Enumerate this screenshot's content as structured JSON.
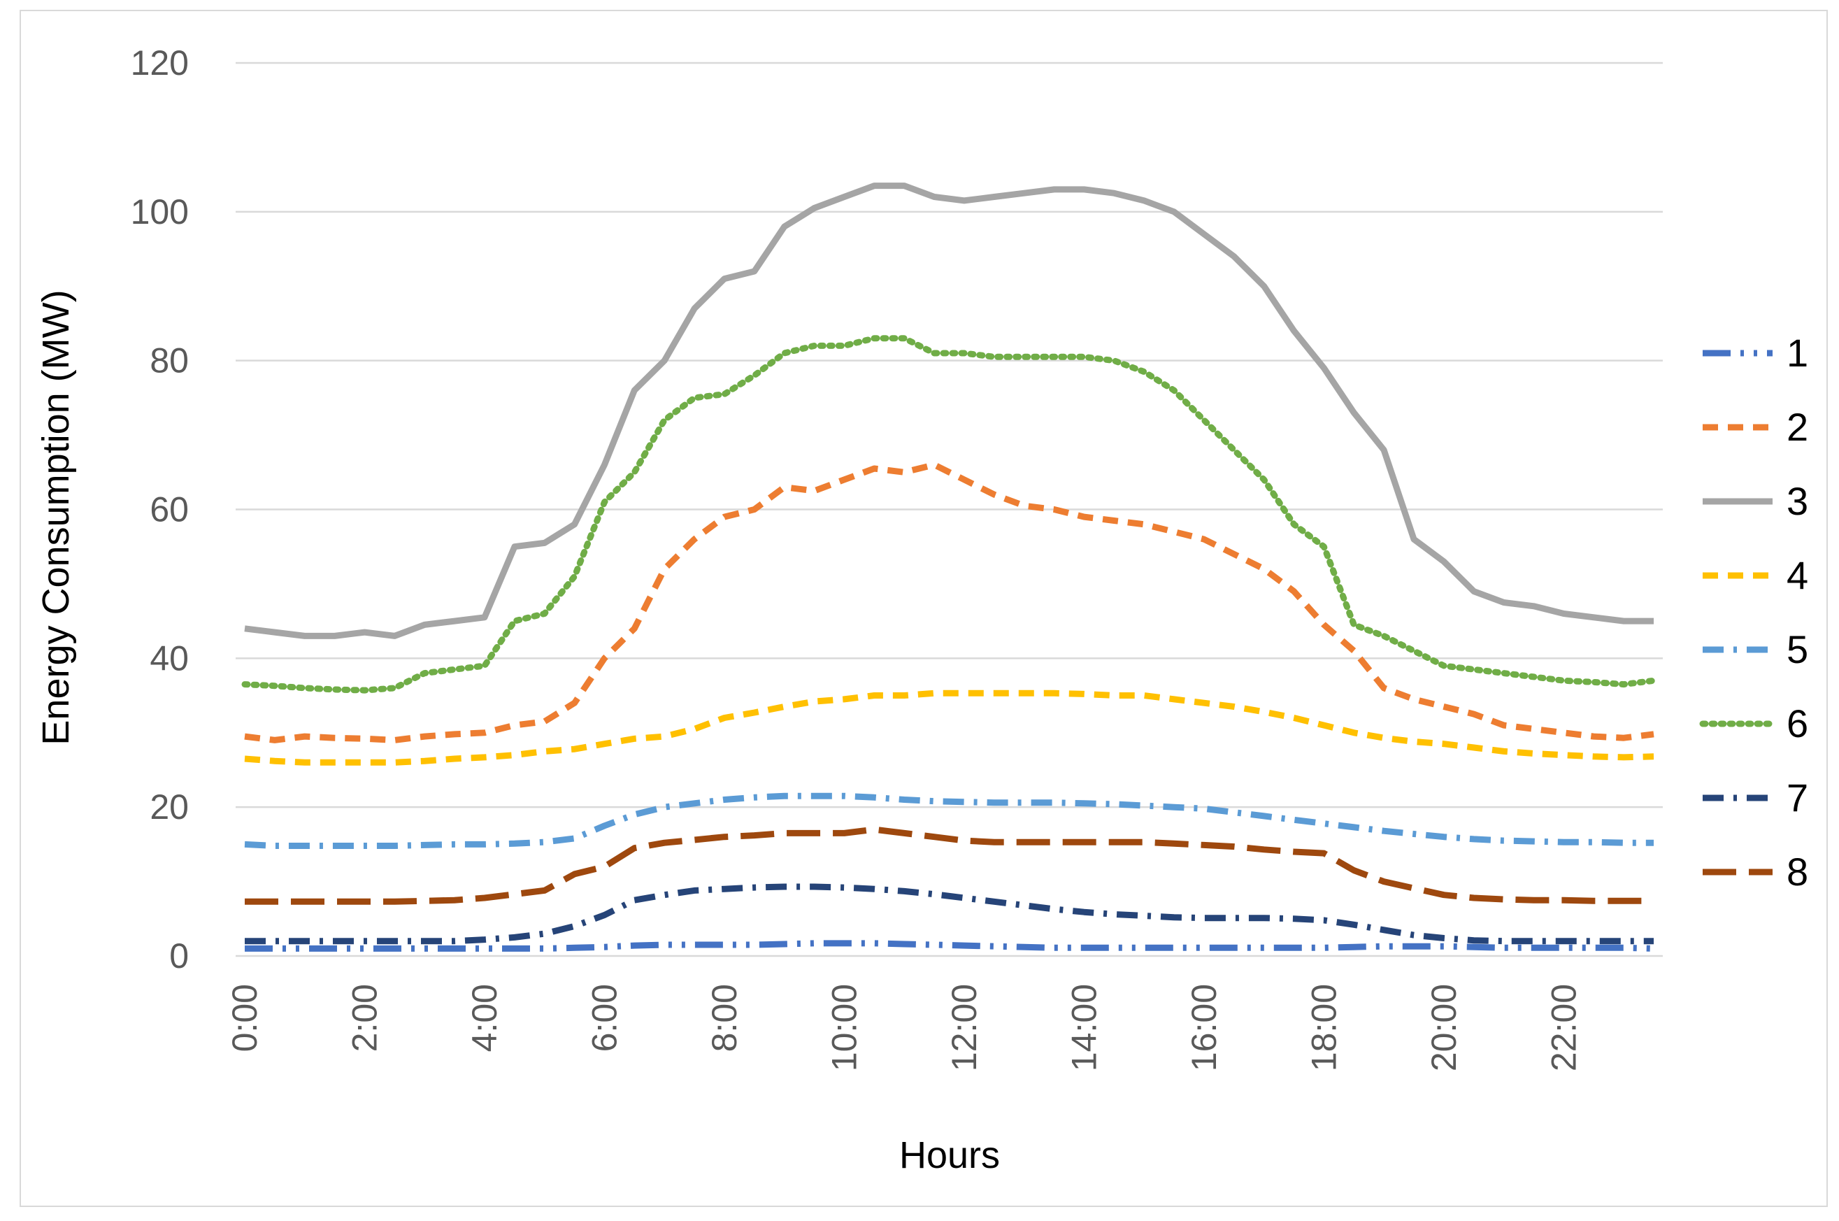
{
  "chart_data": {
    "type": "line",
    "title": "",
    "xlabel": "Hours",
    "ylabel": "Energy Consumption (MW)",
    "ylim": [
      0,
      120
    ],
    "yticks": [
      0,
      20,
      40,
      60,
      80,
      100,
      120
    ],
    "xlim": [
      0,
      23.5
    ],
    "xtick_labels": [
      "0:00",
      "2:00",
      "4:00",
      "6:00",
      "8:00",
      "10:00",
      "12:00",
      "14:00",
      "16:00",
      "18:00",
      "20:00",
      "22:00"
    ],
    "grid": "horizontal",
    "legend": "right",
    "x_hours": [
      0,
      0.5,
      1,
      1.5,
      2,
      2.5,
      3,
      3.5,
      4,
      4.5,
      5,
      5.5,
      6,
      6.5,
      7,
      7.5,
      8,
      8.5,
      9,
      9.5,
      10,
      10.5,
      11,
      11.5,
      12,
      12.5,
      13,
      13.5,
      14,
      14.5,
      15,
      15.5,
      16,
      16.5,
      17,
      17.5,
      18,
      18.5,
      19,
      19.5,
      20,
      20.5,
      21,
      21.5,
      22,
      22.5,
      23,
      23.5
    ],
    "series": [
      {
        "name": "1",
        "color": "#4472C4",
        "dash": "dashdotdot",
        "values": [
          1,
          1,
          1,
          1,
          1,
          1,
          1,
          1,
          1,
          1,
          1,
          1.1,
          1.2,
          1.4,
          1.5,
          1.5,
          1.5,
          1.5,
          1.6,
          1.7,
          1.7,
          1.7,
          1.6,
          1.5,
          1.4,
          1.3,
          1.2,
          1.1,
          1.1,
          1.1,
          1.1,
          1.1,
          1.1,
          1.1,
          1.1,
          1.1,
          1.1,
          1.2,
          1.3,
          1.3,
          1.3,
          1.2,
          1.1,
          1.1,
          1.1,
          1.1,
          1.1,
          1
        ]
      },
      {
        "name": "2",
        "color": "#ED7D31",
        "dash": "dash",
        "values": [
          29.5,
          29,
          29.5,
          29.3,
          29.2,
          29,
          29.5,
          29.8,
          30,
          31,
          31.5,
          34,
          40,
          44,
          52,
          56,
          59,
          60,
          63,
          62.5,
          64,
          65.5,
          65,
          66,
          64,
          62,
          60.5,
          60,
          59,
          58.5,
          58,
          57,
          56,
          54,
          52,
          49,
          44.5,
          41,
          36,
          34.5,
          33.5,
          32.5,
          31,
          30.5,
          30,
          29.5,
          29.3,
          29.8
        ]
      },
      {
        "name": "3",
        "color": "#A5A5A5",
        "dash": "solid",
        "values": [
          44,
          43.5,
          43,
          43,
          43.5,
          43,
          44.5,
          45,
          45.5,
          55,
          55.5,
          58,
          66,
          76,
          80,
          87,
          91,
          92,
          98,
          100.5,
          102,
          103.5,
          103.5,
          102,
          101.5,
          102,
          102.5,
          103,
          103,
          102.5,
          101.5,
          100,
          97,
          94,
          90,
          84,
          79,
          73,
          68,
          56,
          53,
          49,
          47.5,
          47,
          46,
          45.5,
          45,
          45
        ]
      },
      {
        "name": "4",
        "color": "#FFC000",
        "dash": "dash",
        "values": [
          26.5,
          26.2,
          26,
          26,
          26,
          26,
          26.2,
          26.5,
          26.7,
          27,
          27.5,
          27.8,
          28.5,
          29.2,
          29.5,
          30.5,
          32,
          32.7,
          33.5,
          34.2,
          34.5,
          35,
          35,
          35.3,
          35.3,
          35.3,
          35.3,
          35.3,
          35.2,
          35,
          35,
          34.5,
          34,
          33.5,
          32.8,
          32,
          31,
          30,
          29.3,
          28.8,
          28.5,
          28,
          27.5,
          27.2,
          27,
          26.8,
          26.7,
          26.8
        ]
      },
      {
        "name": "5",
        "color": "#5B9BD5",
        "dash": "dashdot",
        "values": [
          15,
          14.8,
          14.8,
          14.8,
          14.8,
          14.8,
          14.9,
          15,
          15,
          15.1,
          15.3,
          15.8,
          17.5,
          19,
          20,
          20.5,
          21,
          21.3,
          21.5,
          21.5,
          21.5,
          21.3,
          21,
          20.8,
          20.7,
          20.6,
          20.6,
          20.6,
          20.5,
          20.4,
          20.2,
          20,
          19.8,
          19.3,
          18.8,
          18.3,
          17.8,
          17.3,
          16.8,
          16.4,
          16,
          15.7,
          15.5,
          15.4,
          15.3,
          15.3,
          15.2,
          15.2
        ]
      },
      {
        "name": "6",
        "color": "#70AD47",
        "dash": "dot",
        "values": [
          36.5,
          36.3,
          36,
          35.8,
          35.7,
          36,
          38,
          38.5,
          39,
          45,
          46,
          51,
          61,
          65,
          72,
          75,
          75.5,
          78,
          81,
          82,
          82,
          83,
          83,
          81,
          81,
          80.5,
          80.5,
          80.5,
          80.5,
          80,
          78.5,
          76,
          72,
          68,
          64,
          58,
          55,
          44.5,
          43,
          41,
          39,
          38.5,
          38,
          37.5,
          37,
          36.8,
          36.5,
          37
        ]
      },
      {
        "name": "7",
        "color": "#264478",
        "dash": "dashdot",
        "values": [
          2,
          2,
          2,
          2,
          2,
          2,
          2,
          2,
          2.2,
          2.5,
          3,
          4,
          5.5,
          7.5,
          8.2,
          8.8,
          9,
          9.2,
          9.3,
          9.3,
          9.2,
          9,
          8.7,
          8.3,
          7.8,
          7.3,
          6.8,
          6.3,
          5.9,
          5.6,
          5.4,
          5.2,
          5.1,
          5.1,
          5.1,
          5,
          4.8,
          4.2,
          3.5,
          2.8,
          2.4,
          2.1,
          2,
          2,
          2,
          2,
          2,
          2
        ]
      },
      {
        "name": "8",
        "color": "#9E480E",
        "dash": "longdash",
        "values": [
          7.3,
          7.3,
          7.3,
          7.3,
          7.3,
          7.3,
          7.4,
          7.5,
          7.8,
          8.3,
          8.8,
          11,
          12,
          14.5,
          15.2,
          15.6,
          16,
          16.2,
          16.5,
          16.5,
          16.5,
          17,
          16.5,
          16,
          15.5,
          15.3,
          15.3,
          15.3,
          15.3,
          15.3,
          15.3,
          15.1,
          14.9,
          14.7,
          14.3,
          14,
          13.8,
          11.5,
          10,
          9.1,
          8.2,
          7.8,
          7.6,
          7.5,
          7.5,
          7.4,
          7.4,
          7.4
        ]
      }
    ]
  }
}
